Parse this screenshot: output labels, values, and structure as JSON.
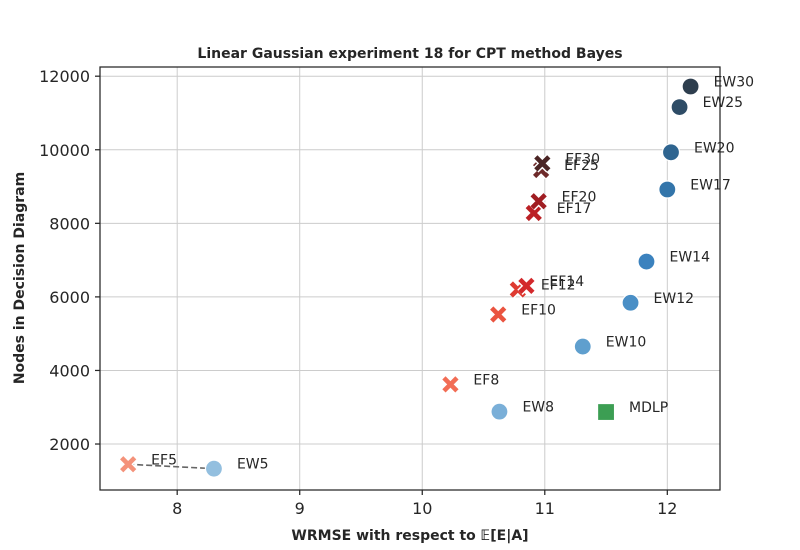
{
  "chart_data": {
    "type": "scatter",
    "title": "Linear Gaussian experiment 18 for CPT method Bayes",
    "xlabel": "WRMSE with respect to 𝔼[E|A]",
    "ylabel": "Nodes in Decision Diagram",
    "xlim": [
      7.37,
      12.43
    ],
    "ylim": [
      750,
      12250
    ],
    "xticks": [
      8,
      9,
      10,
      11,
      12
    ],
    "yticks": [
      2000,
      4000,
      6000,
      8000,
      10000,
      12000
    ],
    "grid": true,
    "series": [
      {
        "marker": "x",
        "points": [
          {
            "label": "EF5",
            "x": 7.6,
            "y": 1450,
            "color": "#f4927a"
          },
          {
            "label": "EF8",
            "x": 10.23,
            "y": 3620,
            "color": "#f26d55"
          },
          {
            "label": "EF10",
            "x": 10.62,
            "y": 5520,
            "color": "#ea5440"
          },
          {
            "label": "EF12",
            "x": 10.78,
            "y": 6200,
            "color": "#de3a31"
          },
          {
            "label": "EF14",
            "x": 10.85,
            "y": 6300,
            "color": "#d3292c"
          },
          {
            "label": "EF17",
            "x": 10.91,
            "y": 8280,
            "color": "#bb2025"
          },
          {
            "label": "EF20",
            "x": 10.95,
            "y": 8600,
            "color": "#a01d22"
          },
          {
            "label": "EF25",
            "x": 10.97,
            "y": 9450,
            "color": "#6e2a2a"
          },
          {
            "label": "EF30",
            "x": 10.98,
            "y": 9630,
            "color": "#4a2424"
          }
        ]
      },
      {
        "marker": "circle",
        "points": [
          {
            "label": "EW5",
            "x": 8.3,
            "y": 1330,
            "color": "#93bfdf"
          },
          {
            "label": "EW8",
            "x": 10.63,
            "y": 2880,
            "color": "#7aafd8"
          },
          {
            "label": "EW10",
            "x": 11.31,
            "y": 4650,
            "color": "#5f9fce"
          },
          {
            "label": "EW12",
            "x": 11.7,
            "y": 5840,
            "color": "#4a8fc6"
          },
          {
            "label": "EW14",
            "x": 11.83,
            "y": 6960,
            "color": "#3b82be"
          },
          {
            "label": "EW17",
            "x": 12.0,
            "y": 8920,
            "color": "#3375aa"
          },
          {
            "label": "EW20",
            "x": 12.03,
            "y": 9930,
            "color": "#2f6590"
          },
          {
            "label": "EW25",
            "x": 12.1,
            "y": 11160,
            "color": "#2e4c66"
          },
          {
            "label": "EW30",
            "x": 12.19,
            "y": 11720,
            "color": "#2e3e4e"
          }
        ]
      },
      {
        "marker": "square",
        "points": [
          {
            "label": "MDLP",
            "x": 11.5,
            "y": 2870,
            "color": "#3c9e53"
          }
        ]
      }
    ],
    "connector": {
      "from": "EF5",
      "to": "EW5",
      "style": "dashed",
      "color": "#666666"
    }
  }
}
